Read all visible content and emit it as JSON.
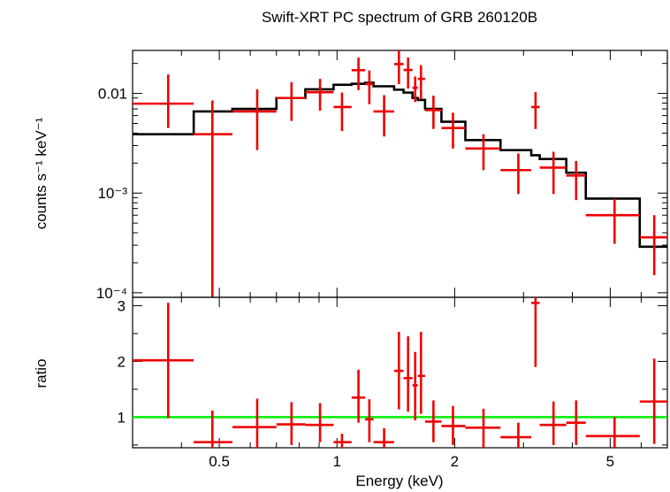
{
  "chart_data": [
    {
      "type": "scatter",
      "title": "Swift-XRT PC spectrum of GRB 260120B",
      "ylabel": "counts s⁻¹ keV⁻¹",
      "xscale": "log",
      "yscale": "log",
      "xlim": [
        0.3,
        7.0
      ],
      "ylim": [
        9e-05,
        0.027
      ],
      "yticks": [
        {
          "v": 0.0001,
          "label": "10⁻⁴"
        },
        {
          "v": 0.001,
          "label": "10⁻³"
        },
        {
          "v": 0.01,
          "label": "0.01"
        }
      ],
      "data_color": "#ee0000",
      "model_color": "#000000",
      "series": [
        {
          "kind": "data",
          "points": [
            {
              "x": 0.37,
              "xlo": 0.3,
              "xhi": 0.43,
              "y": 0.0079,
              "ylo": 0.0045,
              "yhi": 0.0155
            },
            {
              "x": 0.48,
              "xlo": 0.43,
              "xhi": 0.54,
              "y": 0.0039,
              "ylo": 9e-05,
              "yhi": 0.0085
            },
            {
              "x": 0.625,
              "xlo": 0.54,
              "xhi": 0.7,
              "y": 0.0066,
              "ylo": 0.0027,
              "yhi": 0.011
            },
            {
              "x": 0.765,
              "xlo": 0.7,
              "xhi": 0.83,
              "y": 0.009,
              "ylo": 0.0053,
              "yhi": 0.013
            },
            {
              "x": 0.905,
              "xlo": 0.83,
              "xhi": 0.98,
              "y": 0.0103,
              "ylo": 0.0067,
              "yhi": 0.014
            },
            {
              "x": 1.03,
              "xlo": 0.98,
              "xhi": 1.09,
              "y": 0.0073,
              "ylo": 0.0042,
              "yhi": 0.0102
            },
            {
              "x": 1.135,
              "xlo": 1.09,
              "xhi": 1.18,
              "y": 0.0171,
              "ylo": 0.0108,
              "yhi": 0.0229
            },
            {
              "x": 1.21,
              "xlo": 1.18,
              "xhi": 1.24,
              "y": 0.0124,
              "ylo": 0.0078,
              "yhi": 0.017
            },
            {
              "x": 1.32,
              "xlo": 1.24,
              "xhi": 1.4,
              "y": 0.0066,
              "ylo": 0.0037,
              "yhi": 0.0096
            },
            {
              "x": 1.44,
              "xlo": 1.4,
              "xhi": 1.48,
              "y": 0.0197,
              "ylo": 0.0124,
              "yhi": 0.0275
            },
            {
              "x": 1.52,
              "xlo": 1.48,
              "xhi": 1.56,
              "y": 0.0172,
              "ylo": 0.0112,
              "yhi": 0.023
            },
            {
              "x": 1.585,
              "xlo": 1.56,
              "xhi": 1.61,
              "y": 0.0114,
              "ylo": 0.0082,
              "yhi": 0.0148
            },
            {
              "x": 1.64,
              "xlo": 1.61,
              "xhi": 1.68,
              "y": 0.014,
              "ylo": 0.0088,
              "yhi": 0.0192
            },
            {
              "x": 1.765,
              "xlo": 1.68,
              "xhi": 1.85,
              "y": 0.0068,
              "ylo": 0.0044,
              "yhi": 0.0095
            },
            {
              "x": 1.98,
              "xlo": 1.85,
              "xhi": 2.13,
              "y": 0.0045,
              "ylo": 0.0028,
              "yhi": 0.0064
            },
            {
              "x": 2.37,
              "xlo": 2.13,
              "xhi": 2.62,
              "y": 0.0028,
              "ylo": 0.0017,
              "yhi": 0.0039
            },
            {
              "x": 2.91,
              "xlo": 2.62,
              "xhi": 3.14,
              "y": 0.0017,
              "ylo": 0.00098,
              "yhi": 0.0025
            },
            {
              "x": 3.22,
              "xlo": 3.14,
              "xhi": 3.3,
              "y": 0.0073,
              "ylo": 0.0044,
              "yhi": 0.0103
            },
            {
              "x": 3.58,
              "xlo": 3.3,
              "xhi": 3.86,
              "y": 0.0018,
              "ylo": 0.00098,
              "yhi": 0.0026
            },
            {
              "x": 4.09,
              "xlo": 3.86,
              "xhi": 4.33,
              "y": 0.0015,
              "ylo": 0.00085,
              "yhi": 0.0021
            },
            {
              "x": 5.13,
              "xlo": 4.33,
              "xhi": 5.95,
              "y": 0.0006,
              "ylo": 0.00031,
              "yhi": 0.00088
            },
            {
              "x": 6.48,
              "xlo": 5.95,
              "xhi": 7.0,
              "y": 0.00036,
              "ylo": 0.00015,
              "yhi": 0.0006
            }
          ]
        },
        {
          "kind": "model",
          "steps": [
            [
              0.3,
              0.43,
              0.0039
            ],
            [
              0.43,
              0.54,
              0.0066
            ],
            [
              0.54,
              0.7,
              0.007
            ],
            [
              0.7,
              0.83,
              0.009
            ],
            [
              0.83,
              0.98,
              0.011
            ],
            [
              0.98,
              1.09,
              0.0122
            ],
            [
              1.09,
              1.18,
              0.0125
            ],
            [
              1.18,
              1.24,
              0.0128
            ],
            [
              1.24,
              1.4,
              0.0118
            ],
            [
              1.4,
              1.48,
              0.0109
            ],
            [
              1.48,
              1.56,
              0.0102
            ],
            [
              1.56,
              1.61,
              0.009
            ],
            [
              1.61,
              1.68,
              0.0086
            ],
            [
              1.68,
              1.85,
              0.007
            ],
            [
              1.85,
              2.13,
              0.0052
            ],
            [
              2.13,
              2.62,
              0.0034
            ],
            [
              2.62,
              3.14,
              0.0027
            ],
            [
              3.14,
              3.3,
              0.0024
            ],
            [
              3.3,
              3.86,
              0.0022
            ],
            [
              3.86,
              4.33,
              0.0016
            ],
            [
              4.33,
              5.95,
              0.00088
            ],
            [
              5.95,
              7.0,
              0.00029
            ]
          ]
        }
      ]
    },
    {
      "type": "scatter",
      "ylabel": "ratio",
      "xlabel": "Energy (keV)",
      "xscale": "log",
      "xlim": [
        0.3,
        7.0
      ],
      "ylim": [
        0.45,
        3.15
      ],
      "yticks": [
        1,
        2,
        3
      ],
      "xticks": [
        {
          "v": 0.5,
          "label": "0.5"
        },
        {
          "v": 1,
          "label": "1"
        },
        {
          "v": 2,
          "label": "2"
        },
        {
          "v": 5,
          "label": "5"
        }
      ],
      "reference_line": 1,
      "reference_color": "#00ee00",
      "points": [
        {
          "x": 0.37,
          "xlo": 0.3,
          "xhi": 0.43,
          "y": 2.02,
          "ylo": 0.98,
          "yhi": 3.05
        },
        {
          "x": 0.48,
          "xlo": 0.43,
          "xhi": 0.54,
          "y": 0.55,
          "ylo": 0.45,
          "yhi": 1.12
        },
        {
          "x": 0.625,
          "xlo": 0.54,
          "xhi": 0.7,
          "y": 0.82,
          "ylo": 0.45,
          "yhi": 1.33
        },
        {
          "x": 0.765,
          "xlo": 0.7,
          "xhi": 0.83,
          "y": 0.87,
          "ylo": 0.5,
          "yhi": 1.27
        },
        {
          "x": 0.905,
          "xlo": 0.83,
          "xhi": 0.98,
          "y": 0.86,
          "ylo": 0.55,
          "yhi": 1.25
        },
        {
          "x": 1.03,
          "xlo": 0.98,
          "xhi": 1.09,
          "y": 0.55,
          "ylo": 0.45,
          "yhi": 0.7
        },
        {
          "x": 1.135,
          "xlo": 1.09,
          "xhi": 1.18,
          "y": 1.35,
          "ylo": 0.9,
          "yhi": 1.85
        },
        {
          "x": 1.21,
          "xlo": 1.18,
          "xhi": 1.24,
          "y": 0.96,
          "ylo": 0.55,
          "yhi": 1.32
        },
        {
          "x": 1.32,
          "xlo": 1.24,
          "xhi": 1.4,
          "y": 0.55,
          "ylo": 0.45,
          "yhi": 0.8
        },
        {
          "x": 1.44,
          "xlo": 1.4,
          "xhi": 1.48,
          "y": 1.83,
          "ylo": 1.14,
          "yhi": 2.53
        },
        {
          "x": 1.52,
          "xlo": 1.48,
          "xhi": 1.56,
          "y": 1.7,
          "ylo": 1.1,
          "yhi": 2.45
        },
        {
          "x": 1.585,
          "xlo": 1.56,
          "xhi": 1.61,
          "y": 1.57,
          "ylo": 0.94,
          "yhi": 2.17
        },
        {
          "x": 1.64,
          "xlo": 1.61,
          "xhi": 1.68,
          "y": 1.74,
          "ylo": 1.06,
          "yhi": 2.53
        },
        {
          "x": 1.765,
          "xlo": 1.68,
          "xhi": 1.85,
          "y": 0.92,
          "ylo": 0.55,
          "yhi": 1.3
        },
        {
          "x": 1.98,
          "xlo": 1.85,
          "xhi": 2.13,
          "y": 0.84,
          "ylo": 0.5,
          "yhi": 1.2
        },
        {
          "x": 2.37,
          "xlo": 2.13,
          "xhi": 2.62,
          "y": 0.81,
          "ylo": 0.45,
          "yhi": 1.15
        },
        {
          "x": 2.91,
          "xlo": 2.62,
          "xhi": 3.14,
          "y": 0.64,
          "ylo": 0.45,
          "yhi": 0.9
        },
        {
          "x": 3.22,
          "xlo": 3.14,
          "xhi": 3.3,
          "y": 3.05,
          "ylo": 1.9,
          "yhi": 3.15
        },
        {
          "x": 3.58,
          "xlo": 3.3,
          "xhi": 3.86,
          "y": 0.86,
          "ylo": 0.5,
          "yhi": 1.28
        },
        {
          "x": 4.09,
          "xlo": 3.86,
          "xhi": 4.33,
          "y": 0.9,
          "ylo": 0.5,
          "yhi": 1.3
        },
        {
          "x": 5.13,
          "xlo": 4.33,
          "xhi": 5.95,
          "y": 0.66,
          "ylo": 0.45,
          "yhi": 1.0
        },
        {
          "x": 6.48,
          "xlo": 5.95,
          "xhi": 7.0,
          "y": 1.28,
          "ylo": 0.52,
          "yhi": 2.05
        }
      ]
    }
  ]
}
